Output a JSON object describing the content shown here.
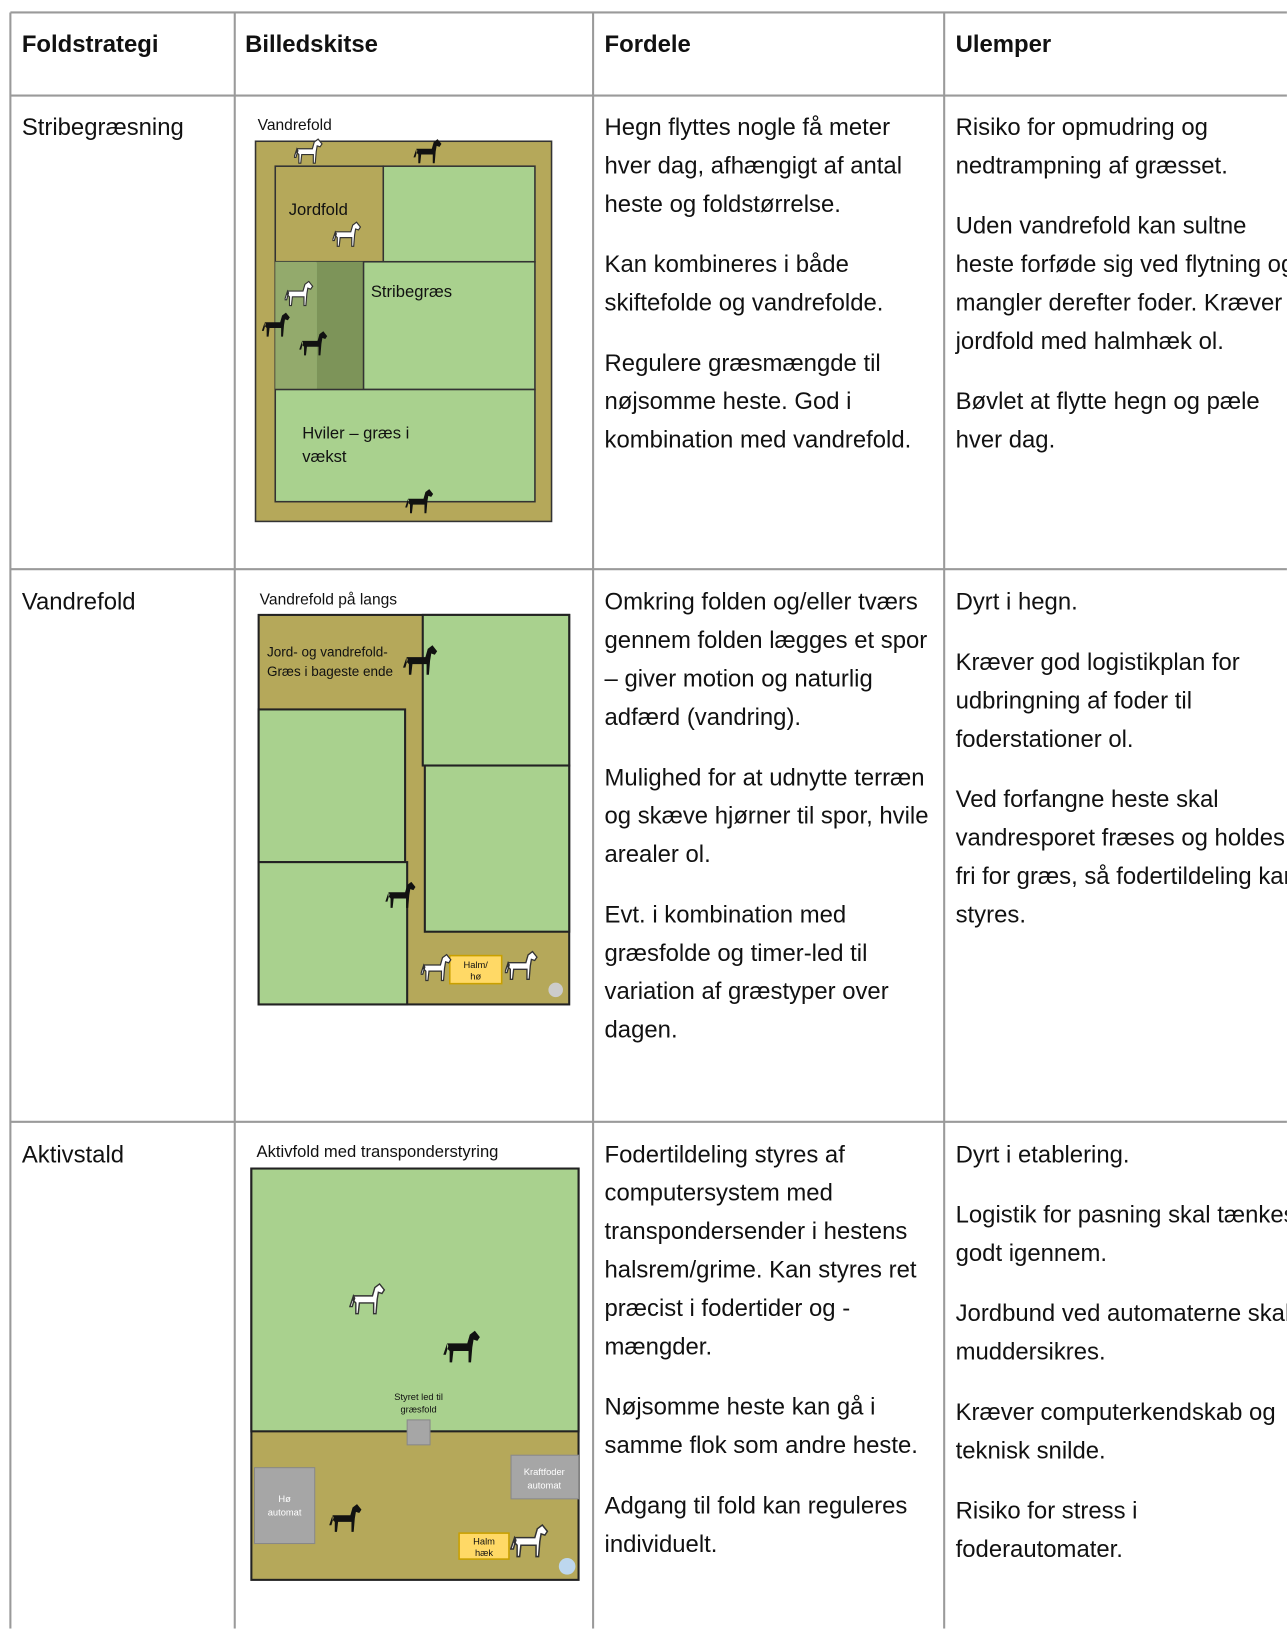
{
  "table": {
    "header": [
      "Foldstrategi",
      "Billedskitse",
      "Fordele",
      "Ulemper"
    ],
    "rows": [
      {
        "strategy": "Stribegræsning",
        "sketch": {
          "title": "Vandrefold",
          "jordfold": "Jordfold",
          "stribegraes": "Stribegræs",
          "hviler": [
            "Hviler – græs i",
            "vækst"
          ]
        },
        "pros": [
          "Hegn flyttes nogle få meter hver dag, afhængigt af antal heste og foldstørrelse.",
          "Kan kombineres i både skiftefolde og vandrefolde.",
          "Regulere græsmængde til nøjsomme heste. God i kombination med vandrefold."
        ],
        "cons": [
          "Risiko for opmudring og nedtrampning af græsset.",
          "Uden vandrefold kan sultne heste forføde sig ved flytning og mangler derefter foder. Kræver jordfold med halmhæk ol.",
          "Bøvlet at flytte hegn og pæle hver dag."
        ]
      },
      {
        "strategy": "Vandrefold",
        "sketch": {
          "title": "Vandrefold på langs",
          "jord": [
            "Jord- og vandrefold-",
            "Græs i bageste ende"
          ],
          "halm": [
            "Halm/",
            "hø"
          ]
        },
        "pros": [
          "Omkring folden og/eller tværs gennem folden lægges et spor – giver motion og naturlig adfærd (vandring).",
          "Mulighed for at udnytte terræn og skæve hjørner til spor, hvile arealer ol.",
          "Evt. i kombination med græsfolde og timer-led til variation af græstyper over dagen."
        ],
        "cons": [
          "Dyrt i hegn.",
          "Kræver god logistikplan for udbringning af foder til foderstationer ol.",
          "Ved forfangne heste skal vandresporet fræses og holdes fri for græs, så fodertildeling kan styres."
        ]
      },
      {
        "strategy": "Aktivstald",
        "sketch": {
          "title": "Aktivfold med transponderstyring",
          "styret": [
            "Styret led til",
            "græsfold"
          ],
          "ho": [
            "Hø",
            "automat"
          ],
          "kraft": [
            "Kraftfoder",
            "automat"
          ],
          "halm": [
            "Halm",
            "hæk"
          ]
        },
        "pros": [
          "Fodertildeling styres af computersystem med transpondersender i hestens halsrem/grime. Kan styres ret præcist i fodertider og -mængder.",
          "Nøjsomme heste kan gå i samme flok som andre heste.",
          "Adgang til fold kan reguleres individuelt."
        ],
        "cons": [
          "Dyrt i etablering.",
          "Logistik for pasning skal tænkes godt igennem.",
          "Jordbund ved automaterne skal muddersikres.",
          "Kræver computerkendskab og teknisk snilde.",
          "Risiko for stress i foderautomater."
        ]
      }
    ]
  }
}
